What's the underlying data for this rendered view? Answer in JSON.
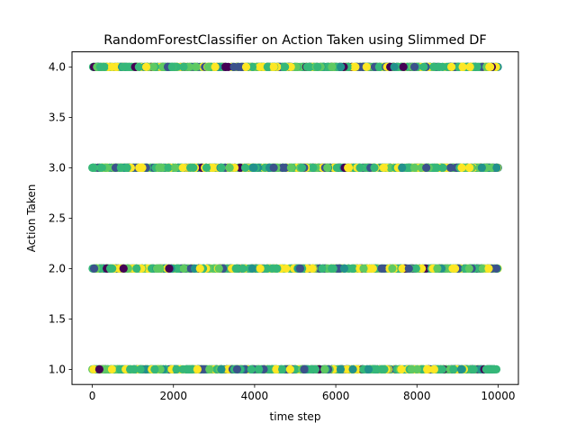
{
  "chart_data": {
    "type": "scatter",
    "title": "RandomForestClassifier on Action Taken using Slimmed DF",
    "xlabel": "time step",
    "ylabel": "Action Taken",
    "xlim": [
      -500,
      10500
    ],
    "ylim": [
      0.85,
      4.15
    ],
    "xticks": [
      0,
      2000,
      4000,
      6000,
      8000,
      10000
    ],
    "xtick_labels": [
      "0",
      "2000",
      "4000",
      "6000",
      "8000",
      "10000"
    ],
    "yticks": [
      1.0,
      1.5,
      2.0,
      2.5,
      3.0,
      3.5,
      4.0
    ],
    "ytick_labels": [
      "1.0",
      "1.5",
      "2.0",
      "2.5",
      "3.0",
      "3.5",
      "4.0"
    ],
    "grid": false,
    "legend": "none",
    "colormap": "viridis",
    "category_colors": [
      "#440154",
      "#3b528b",
      "#21918c",
      "#35b779",
      "#5ec962",
      "#fde725"
    ],
    "x_range": [
      0,
      10000
    ],
    "rows": [
      {
        "y": 4.0,
        "points": "dense"
      },
      {
        "y": 3.0,
        "points": "dense"
      },
      {
        "y": 2.0,
        "points": "dense"
      },
      {
        "y": 1.0,
        "points": "dense"
      }
    ]
  }
}
